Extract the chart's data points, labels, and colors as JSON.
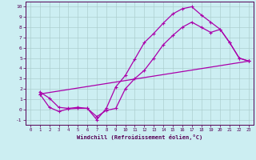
{
  "xlabel": "Windchill (Refroidissement éolien,°C)",
  "xlim": [
    -0.5,
    23.5
  ],
  "ylim": [
    -1.5,
    10.5
  ],
  "xticks": [
    0,
    1,
    2,
    3,
    4,
    5,
    6,
    7,
    8,
    9,
    10,
    11,
    12,
    13,
    14,
    15,
    16,
    17,
    18,
    19,
    20,
    21,
    22,
    23
  ],
  "yticks": [
    -1,
    0,
    1,
    2,
    3,
    4,
    5,
    6,
    7,
    8,
    9,
    10
  ],
  "background_color": "#cceef2",
  "grid_color": "#aacccc",
  "line_color": "#aa00aa",
  "line1_x": [
    1,
    2,
    3,
    4,
    5,
    6,
    7,
    8,
    9,
    10,
    11,
    12,
    13,
    14,
    15,
    16,
    17,
    18,
    19,
    20,
    21,
    22,
    23
  ],
  "line1_y": [
    1.7,
    1.1,
    0.2,
    0.1,
    0.2,
    0.1,
    -1.0,
    0.1,
    2.2,
    3.3,
    4.9,
    6.5,
    7.4,
    8.4,
    9.3,
    9.8,
    10.0,
    9.2,
    8.5,
    7.8,
    6.5,
    5.0,
    4.7
  ],
  "line2_x": [
    1,
    2,
    3,
    4,
    5,
    6,
    7,
    8,
    9,
    10,
    11,
    12,
    13,
    14,
    15,
    16,
    17,
    18,
    19,
    20,
    21,
    22,
    23
  ],
  "line2_y": [
    1.5,
    0.2,
    -0.2,
    0.05,
    0.1,
    0.1,
    -0.7,
    -0.1,
    0.1,
    2.0,
    3.0,
    3.8,
    5.0,
    6.3,
    7.2,
    8.0,
    8.5,
    8.0,
    7.5,
    7.8,
    6.5,
    5.0,
    4.7
  ],
  "line3_x": [
    1,
    23
  ],
  "line3_y": [
    1.5,
    4.7
  ],
  "marker": "P",
  "markersize": 2.5,
  "linewidth": 0.9
}
